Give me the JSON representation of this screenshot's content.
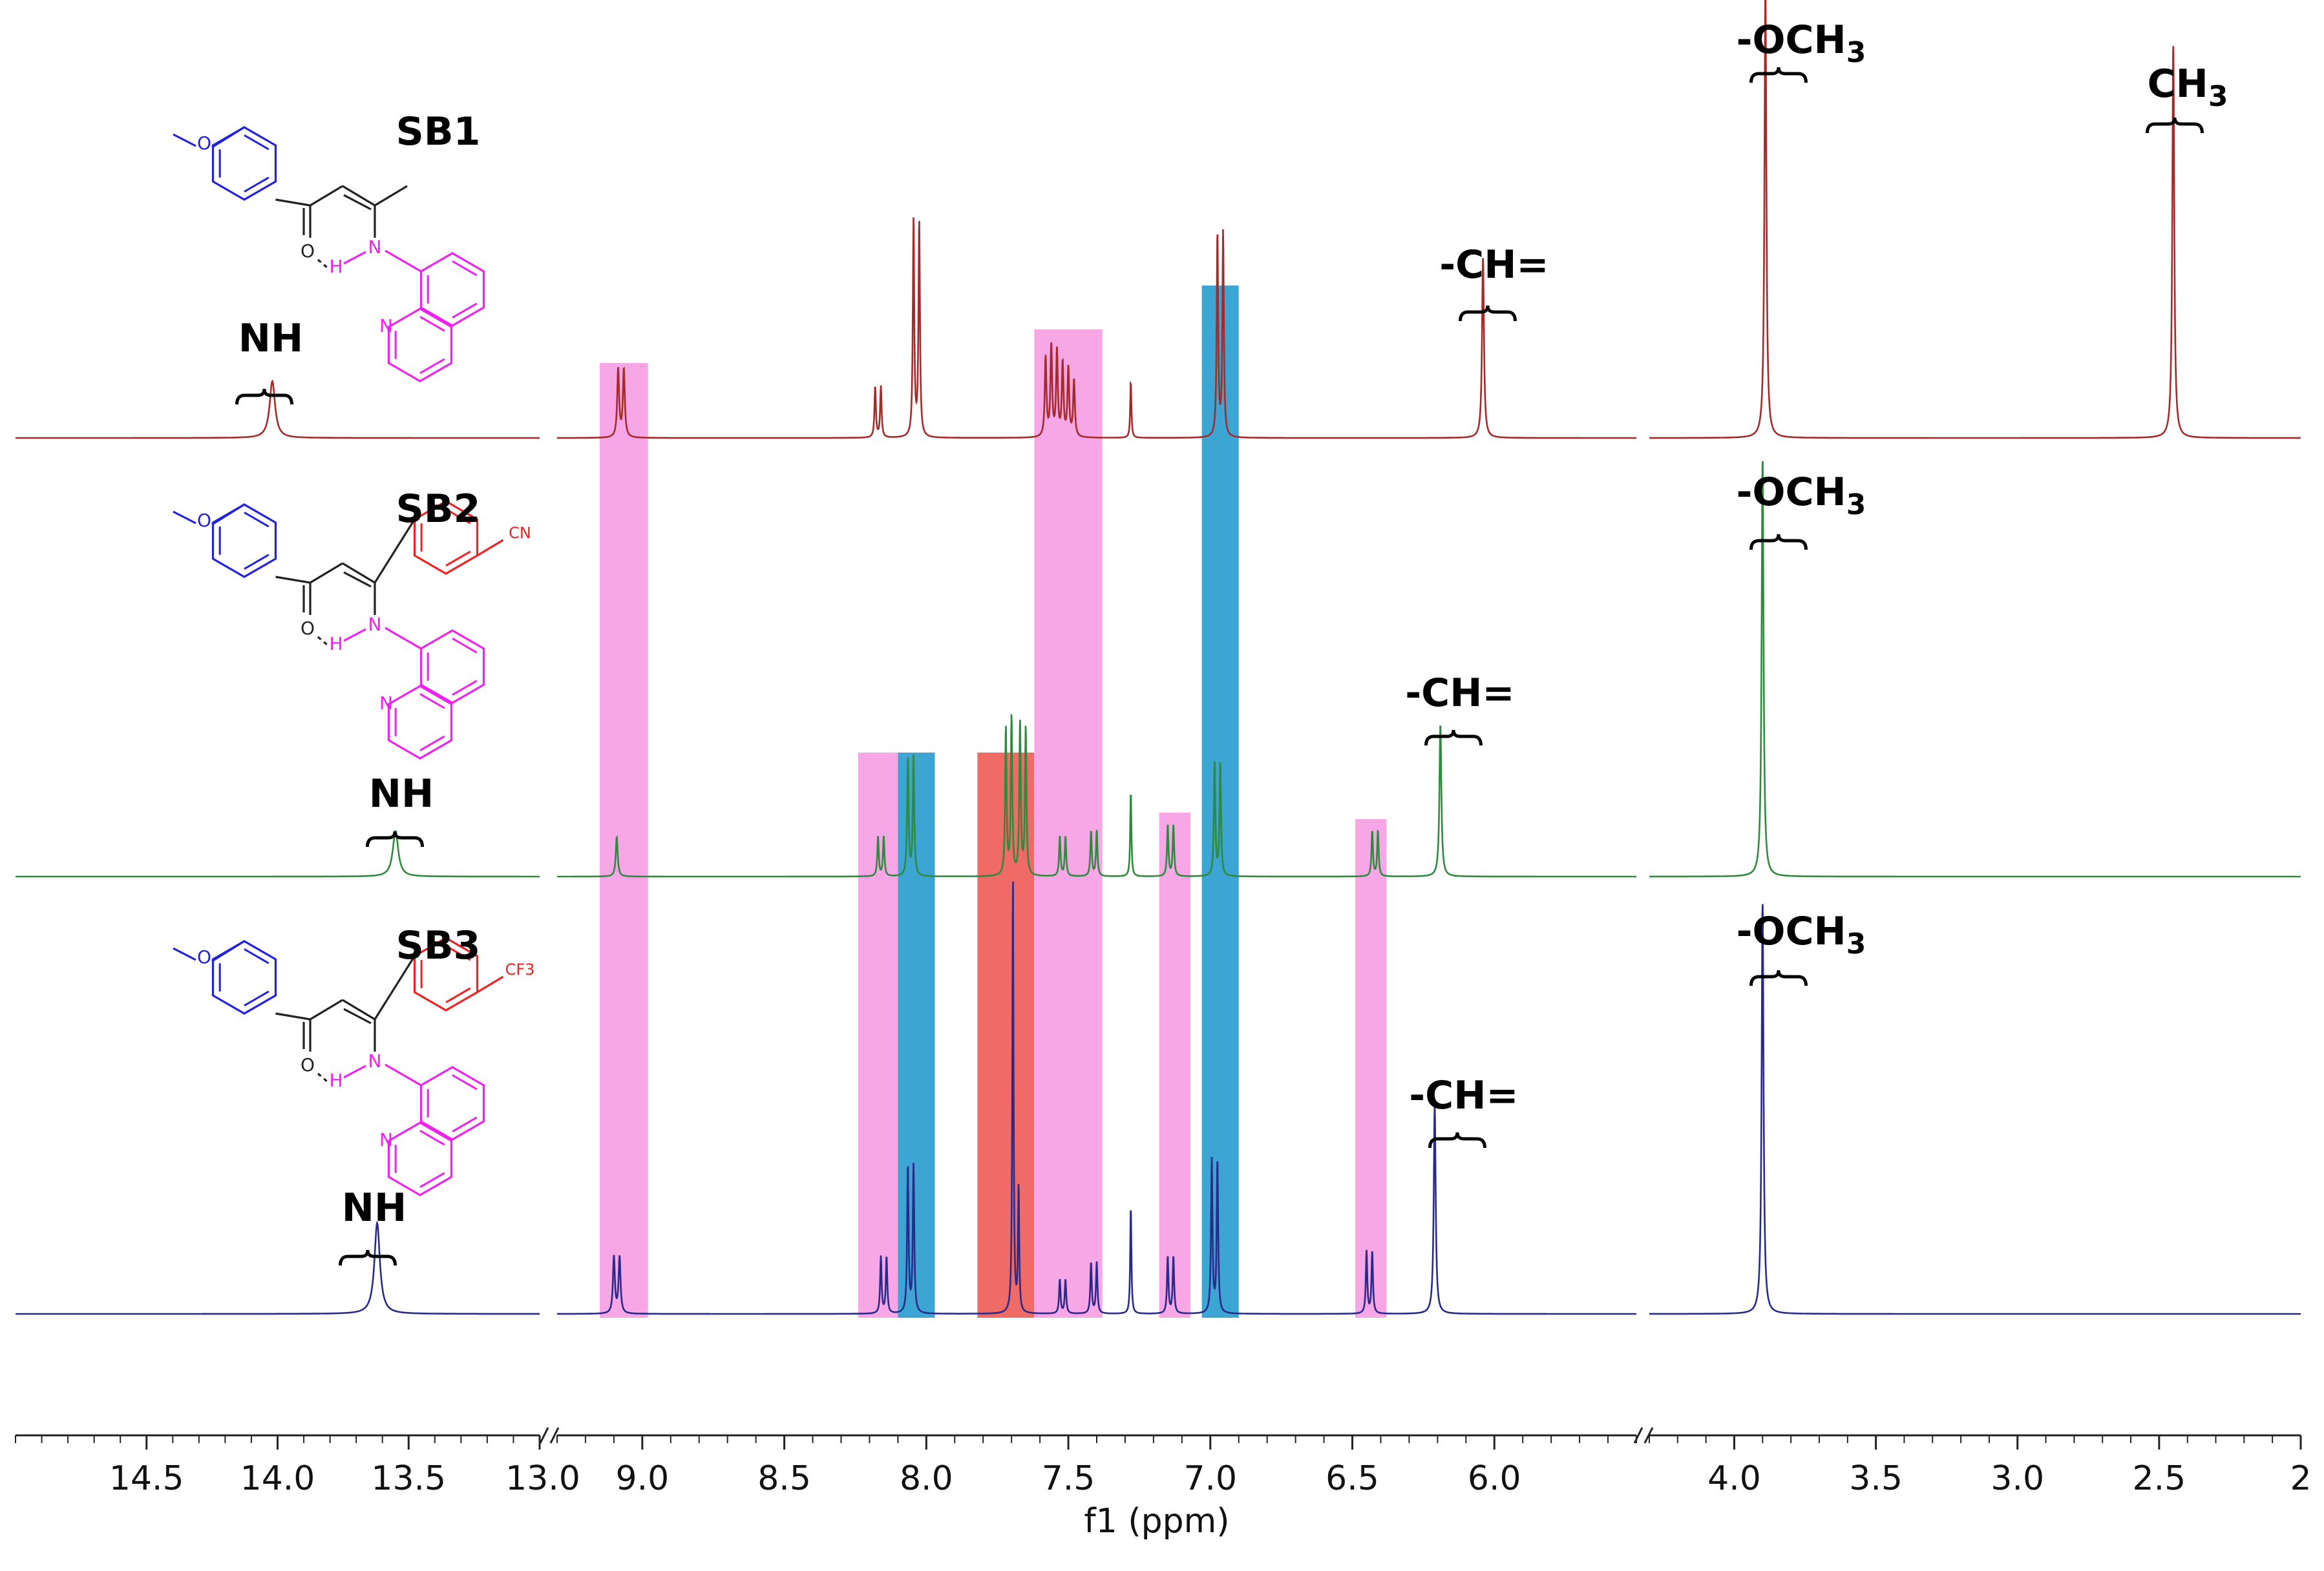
{
  "chart_data": {
    "type": "line",
    "title": "",
    "xlabel": "f1 (ppm)",
    "ylabel": "",
    "axis_segments": [
      {
        "from": 15.0,
        "to": 13.0
      },
      {
        "from": 9.3,
        "to": 5.5
      },
      {
        "from": 4.3,
        "to": 2.0
      }
    ],
    "tick_labels": [
      {
        "value": 14.5,
        "label": "14.5"
      },
      {
        "value": 14.0,
        "label": "14.0"
      },
      {
        "value": 13.5,
        "label": "13.5"
      },
      {
        "value": 13.0,
        "label": "13.0"
      },
      {
        "value": 9.0,
        "label": "9.0"
      },
      {
        "value": 8.5,
        "label": "8.5"
      },
      {
        "value": 8.0,
        "label": "8.0"
      },
      {
        "value": 7.5,
        "label": "7.5"
      },
      {
        "value": 7.0,
        "label": "7.0"
      },
      {
        "value": 6.5,
        "label": "6.5"
      },
      {
        "value": 6.0,
        "label": "6.0"
      },
      {
        "value": 4.0,
        "label": "4.0"
      },
      {
        "value": 3.5,
        "label": "3.5"
      },
      {
        "value": 3.0,
        "label": "3.0"
      },
      {
        "value": 2.5,
        "label": "2.5"
      },
      {
        "value": 2.0,
        "label": "2"
      }
    ],
    "highlight_bands": [
      {
        "from": 9.15,
        "to": 8.98,
        "color": "#f7a6e6"
      },
      {
        "from": 8.24,
        "to": 8.1,
        "color": "#f7a6e6"
      },
      {
        "from": 8.1,
        "to": 7.97,
        "color": "#3ca5d4"
      },
      {
        "from": 7.82,
        "to": 7.62,
        "color": "#f06a66"
      },
      {
        "from": 7.62,
        "to": 7.38,
        "color": "#f7a6e6"
      },
      {
        "from": 7.18,
        "to": 7.07,
        "color": "#f7a6e6"
      },
      {
        "from": 7.03,
        "to": 6.9,
        "color": "#3ca5d4"
      },
      {
        "from": 6.49,
        "to": 6.38,
        "color": "#f7a6e6"
      }
    ],
    "series": [
      {
        "name": "SB1",
        "color": "#a52a2a",
        "peaks": [
          {
            "ppm": 14.02,
            "height": 0.1,
            "width": 0.025
          },
          {
            "ppm": 9.085,
            "height": 0.12,
            "width": 0.008
          },
          {
            "ppm": 9.065,
            "height": 0.12,
            "width": 0.008
          },
          {
            "ppm": 8.18,
            "height": 0.09,
            "width": 0.006
          },
          {
            "ppm": 8.16,
            "height": 0.09,
            "width": 0.006
          },
          {
            "ppm": 8.045,
            "height": 0.38,
            "width": 0.006
          },
          {
            "ppm": 8.025,
            "height": 0.38,
            "width": 0.006
          },
          {
            "ppm": 7.58,
            "height": 0.14,
            "width": 0.007
          },
          {
            "ppm": 7.56,
            "height": 0.16,
            "width": 0.007
          },
          {
            "ppm": 7.54,
            "height": 0.15,
            "width": 0.007
          },
          {
            "ppm": 7.52,
            "height": 0.13,
            "width": 0.007
          },
          {
            "ppm": 7.5,
            "height": 0.12,
            "width": 0.007
          },
          {
            "ppm": 7.48,
            "height": 0.1,
            "width": 0.007
          },
          {
            "ppm": 7.28,
            "height": 0.1,
            "width": 0.005
          },
          {
            "ppm": 6.975,
            "height": 0.36,
            "width": 0.006
          },
          {
            "ppm": 6.955,
            "height": 0.36,
            "width": 0.006
          },
          {
            "ppm": 6.04,
            "height": 0.32,
            "width": 0.008
          },
          {
            "ppm": 3.89,
            "height": 0.8,
            "width": 0.008
          },
          {
            "ppm": 2.45,
            "height": 0.7,
            "width": 0.008
          }
        ]
      },
      {
        "name": "SB2",
        "color": "#2e8b3e",
        "peaks": [
          {
            "ppm": 13.55,
            "height": 0.08,
            "width": 0.025
          },
          {
            "ppm": 9.09,
            "height": 0.07,
            "width": 0.008
          },
          {
            "ppm": 8.17,
            "height": 0.07,
            "width": 0.006
          },
          {
            "ppm": 8.15,
            "height": 0.07,
            "width": 0.006
          },
          {
            "ppm": 8.065,
            "height": 0.21,
            "width": 0.006
          },
          {
            "ppm": 8.045,
            "height": 0.21,
            "width": 0.006
          },
          {
            "ppm": 7.72,
            "height": 0.26,
            "width": 0.006
          },
          {
            "ppm": 7.7,
            "height": 0.28,
            "width": 0.006
          },
          {
            "ppm": 7.67,
            "height": 0.27,
            "width": 0.006
          },
          {
            "ppm": 7.65,
            "height": 0.26,
            "width": 0.006
          },
          {
            "ppm": 7.53,
            "height": 0.07,
            "width": 0.006
          },
          {
            "ppm": 7.51,
            "height": 0.07,
            "width": 0.006
          },
          {
            "ppm": 7.42,
            "height": 0.08,
            "width": 0.006
          },
          {
            "ppm": 7.4,
            "height": 0.08,
            "width": 0.006
          },
          {
            "ppm": 7.28,
            "height": 0.15,
            "width": 0.005
          },
          {
            "ppm": 7.15,
            "height": 0.09,
            "width": 0.006
          },
          {
            "ppm": 7.13,
            "height": 0.09,
            "width": 0.006
          },
          {
            "ppm": 6.985,
            "height": 0.2,
            "width": 0.006
          },
          {
            "ppm": 6.965,
            "height": 0.2,
            "width": 0.006
          },
          {
            "ppm": 6.43,
            "height": 0.08,
            "width": 0.006
          },
          {
            "ppm": 6.41,
            "height": 0.08,
            "width": 0.006
          },
          {
            "ppm": 6.19,
            "height": 0.27,
            "width": 0.008
          },
          {
            "ppm": 3.9,
            "height": 0.74,
            "width": 0.008
          }
        ]
      },
      {
        "name": "SB3",
        "color": "#2a2a8a",
        "peaks": [
          {
            "ppm": 13.62,
            "height": 0.16,
            "width": 0.025
          },
          {
            "ppm": 9.1,
            "height": 0.1,
            "width": 0.008
          },
          {
            "ppm": 9.08,
            "height": 0.1,
            "width": 0.008
          },
          {
            "ppm": 8.16,
            "height": 0.1,
            "width": 0.006
          },
          {
            "ppm": 8.14,
            "height": 0.1,
            "width": 0.006
          },
          {
            "ppm": 8.065,
            "height": 0.26,
            "width": 0.006
          },
          {
            "ppm": 8.045,
            "height": 0.26,
            "width": 0.006
          },
          {
            "ppm": 7.695,
            "height": 0.77,
            "width": 0.005
          },
          {
            "ppm": 7.675,
            "height": 0.22,
            "width": 0.005
          },
          {
            "ppm": 7.53,
            "height": 0.06,
            "width": 0.006
          },
          {
            "ppm": 7.51,
            "height": 0.06,
            "width": 0.006
          },
          {
            "ppm": 7.42,
            "height": 0.09,
            "width": 0.006
          },
          {
            "ppm": 7.4,
            "height": 0.09,
            "width": 0.006
          },
          {
            "ppm": 7.28,
            "height": 0.19,
            "width": 0.005
          },
          {
            "ppm": 7.15,
            "height": 0.1,
            "width": 0.006
          },
          {
            "ppm": 7.13,
            "height": 0.1,
            "width": 0.006
          },
          {
            "ppm": 6.995,
            "height": 0.27,
            "width": 0.006
          },
          {
            "ppm": 6.975,
            "height": 0.27,
            "width": 0.006
          },
          {
            "ppm": 6.45,
            "height": 0.11,
            "width": 0.006
          },
          {
            "ppm": 6.43,
            "height": 0.11,
            "width": 0.006
          },
          {
            "ppm": 6.21,
            "height": 0.37,
            "width": 0.008
          },
          {
            "ppm": 3.9,
            "height": 0.73,
            "width": 0.008
          }
        ]
      }
    ],
    "annotations": {
      "SB1": {
        "compound": "SB1",
        "nh": "NH",
        "ch": "-CH=",
        "och3_prefix": "-OCH",
        "och3_sub": "3",
        "ch3_prefix": "CH",
        "ch3_sub": "3"
      },
      "SB2": {
        "compound": "SB2",
        "nh": "NH",
        "ch": "-CH=",
        "och3_prefix": "-OCH",
        "och3_sub": "3",
        "substituent": "CN"
      },
      "SB3": {
        "compound": "SB3",
        "nh": "NH",
        "ch": "-CH=",
        "och3_prefix": "-OCH",
        "och3_sub": "3",
        "substituent": "CF3"
      }
    },
    "structure_atoms": {
      "O": "O",
      "H": "H",
      "N": "N"
    },
    "legend": "none",
    "grid": false
  }
}
